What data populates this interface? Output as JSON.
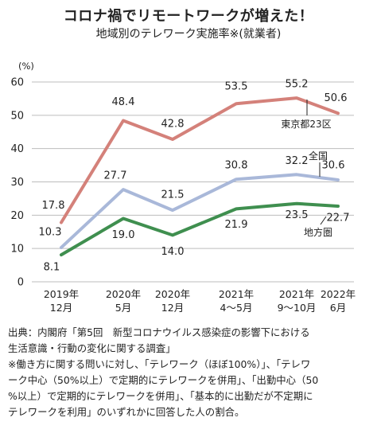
{
  "chart_data": {
    "type": "line",
    "title": "コロナ禍でリモートワークが増えた！",
    "subtitle": "地域別のテレワーク実施率※(就業者)",
    "ylabel": "(%)",
    "ylim": [
      0,
      60
    ],
    "yticks": [
      0,
      10,
      20,
      30,
      40,
      50,
      60
    ],
    "grid": "horizontal",
    "categories": [
      [
        "2019年",
        "12月"
      ],
      [
        "2020年",
        "5月"
      ],
      [
        "2020年",
        "12月"
      ],
      [
        "2021年",
        "4～5月"
      ],
      [
        "2021年",
        "9～10月"
      ],
      [
        "2022年",
        "6月"
      ]
    ],
    "series": [
      {
        "name": "東京都23区",
        "color": "#d4817a",
        "values": [
          17.8,
          48.4,
          42.8,
          53.5,
          55.2,
          50.6
        ]
      },
      {
        "name": "全国",
        "color": "#a9b8d9",
        "values": [
          10.3,
          27.7,
          21.5,
          30.8,
          32.2,
          30.6
        ]
      },
      {
        "name": "地方圏",
        "color": "#3f8f4f",
        "values": [
          8.1,
          19.0,
          14.0,
          21.9,
          23.5,
          22.7
        ]
      }
    ]
  },
  "notes": [
    "出典：内閣府「第5回　新型コロナウイルス感染症の影響下における",
    "生活意識・行動の変化に関する調査」",
    "※働き方に関する問いに対し、「テレワーク（ほぼ100%）」、「テレワ",
    "ーク中心（50%以上）で定期的にテレワークを併用」、「出勤中心（50",
    "%以上）で定期的にテレワークを併用」、「基本的に出勤だが不定期に",
    "テレワークを利用」のいずれかに回答した人の割合。"
  ]
}
